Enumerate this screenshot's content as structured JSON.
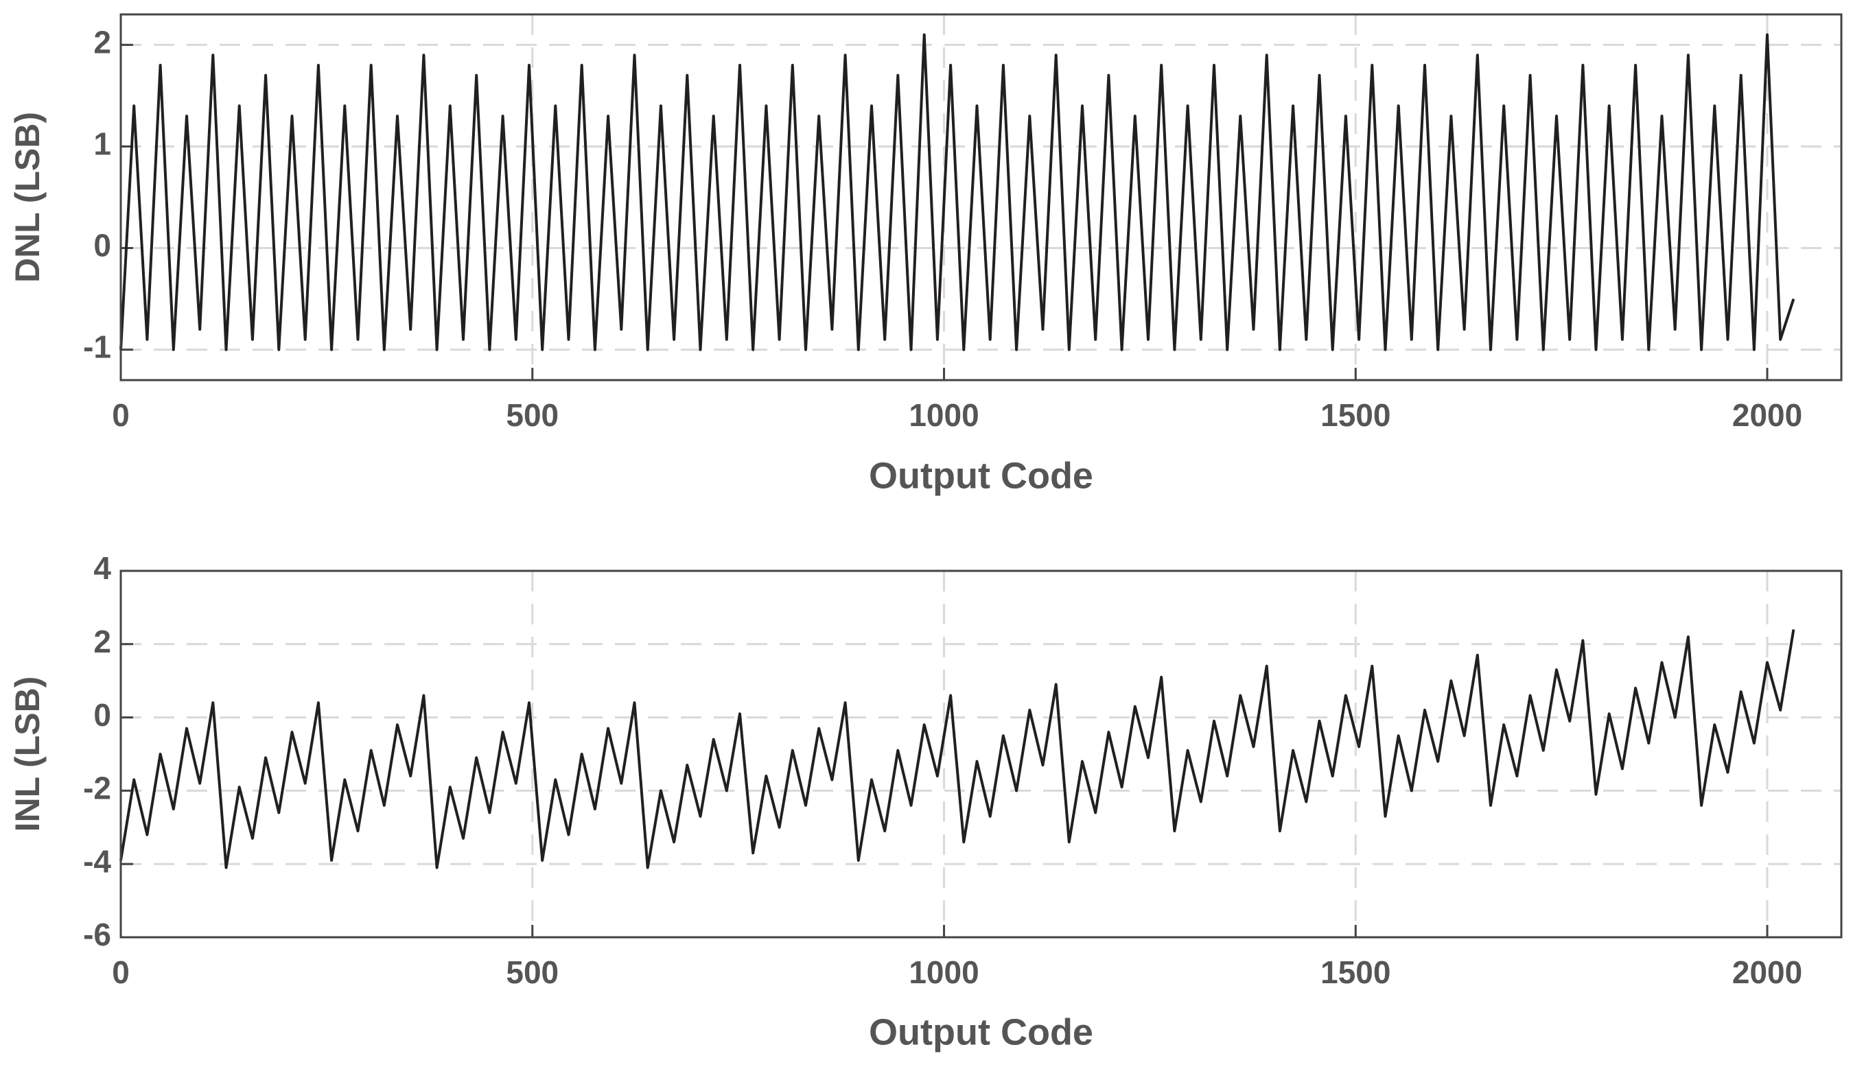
{
  "chart_data": [
    {
      "type": "line",
      "xlabel": "Output Code",
      "ylabel": "DNL (LSB)",
      "color": "#231f20",
      "xlim": [
        0,
        2090
      ],
      "ylim": [
        -1.3,
        2.3
      ],
      "xticks": [
        0,
        500,
        1000,
        1500,
        2000
      ],
      "yticks": [
        -1,
        0,
        1,
        2
      ],
      "grid": true,
      "x": [
        0,
        16,
        32,
        48,
        64,
        80,
        96,
        112,
        128,
        144,
        160,
        176,
        192,
        208,
        224,
        240,
        256,
        272,
        288,
        304,
        320,
        336,
        352,
        368,
        384,
        400,
        416,
        432,
        448,
        464,
        480,
        496,
        512,
        528,
        544,
        560,
        576,
        592,
        608,
        624,
        640,
        656,
        672,
        688,
        704,
        720,
        736,
        752,
        768,
        784,
        800,
        816,
        832,
        848,
        864,
        880,
        896,
        912,
        928,
        944,
        960,
        976,
        992,
        1008,
        1024,
        1040,
        1056,
        1072,
        1088,
        1104,
        1120,
        1136,
        1152,
        1168,
        1184,
        1200,
        1216,
        1232,
        1248,
        1264,
        1280,
        1296,
        1312,
        1328,
        1344,
        1360,
        1376,
        1392,
        1408,
        1424,
        1440,
        1456,
        1472,
        1488,
        1504,
        1520,
        1536,
        1552,
        1568,
        1584,
        1600,
        1616,
        1632,
        1648,
        1664,
        1680,
        1696,
        1712,
        1728,
        1744,
        1760,
        1776,
        1792,
        1808,
        1824,
        1840,
        1856,
        1872,
        1888,
        1904,
        1920,
        1936,
        1952,
        1968,
        1984,
        2000,
        2016,
        2032
      ],
      "values": [
        -1.0,
        1.4,
        -0.9,
        1.8,
        -1.0,
        1.3,
        -0.8,
        1.9,
        -1.0,
        1.4,
        -0.9,
        1.7,
        -1.0,
        1.3,
        -0.9,
        1.8,
        -1.0,
        1.4,
        -0.9,
        1.8,
        -1.0,
        1.3,
        -0.8,
        1.9,
        -1.0,
        1.4,
        -0.9,
        1.7,
        -1.0,
        1.3,
        -0.9,
        1.8,
        -1.0,
        1.4,
        -0.9,
        1.8,
        -1.0,
        1.3,
        -0.8,
        1.9,
        -1.0,
        1.4,
        -0.9,
        1.7,
        -1.0,
        1.3,
        -0.9,
        1.8,
        -1.0,
        1.4,
        -0.9,
        1.8,
        -1.0,
        1.3,
        -0.8,
        1.9,
        -1.0,
        1.4,
        -0.9,
        1.7,
        -1.0,
        2.1,
        -0.9,
        1.8,
        -1.0,
        1.4,
        -0.9,
        1.8,
        -1.0,
        1.3,
        -0.8,
        1.9,
        -1.0,
        1.4,
        -0.9,
        1.7,
        -1.0,
        1.3,
        -0.9,
        1.8,
        -1.0,
        1.4,
        -0.9,
        1.8,
        -1.0,
        1.3,
        -0.8,
        1.9,
        -1.0,
        1.4,
        -0.9,
        1.7,
        -1.0,
        1.3,
        -0.9,
        1.8,
        -1.0,
        1.4,
        -0.9,
        1.8,
        -1.0,
        1.3,
        -0.8,
        1.9,
        -1.0,
        1.4,
        -0.9,
        1.7,
        -1.0,
        1.3,
        -0.9,
        1.8,
        -1.0,
        1.4,
        -0.9,
        1.8,
        -1.0,
        1.3,
        -0.8,
        1.9,
        -1.0,
        1.4,
        -0.9,
        1.7,
        -1.0,
        2.1,
        -0.9,
        -0.5
      ]
    },
    {
      "type": "line",
      "xlabel": "Output Code",
      "ylabel": "INL (LSB)",
      "color": "#231f20",
      "xlim": [
        0,
        2090
      ],
      "ylim": [
        -6,
        4
      ],
      "xticks": [
        0,
        500,
        1000,
        1500,
        2000
      ],
      "yticks": [
        -6,
        -4,
        -2,
        0,
        2,
        4
      ],
      "grid": true,
      "x": [
        0,
        16,
        32,
        48,
        64,
        80,
        96,
        112,
        128,
        144,
        160,
        176,
        192,
        208,
        224,
        240,
        256,
        272,
        288,
        304,
        320,
        336,
        352,
        368,
        384,
        400,
        416,
        432,
        448,
        464,
        480,
        496,
        512,
        528,
        544,
        560,
        576,
        592,
        608,
        624,
        640,
        656,
        672,
        688,
        704,
        720,
        736,
        752,
        768,
        784,
        800,
        816,
        832,
        848,
        864,
        880,
        896,
        912,
        928,
        944,
        960,
        976,
        992,
        1008,
        1024,
        1040,
        1056,
        1072,
        1088,
        1104,
        1120,
        1136,
        1152,
        1168,
        1184,
        1200,
        1216,
        1232,
        1248,
        1264,
        1280,
        1296,
        1312,
        1328,
        1344,
        1360,
        1376,
        1392,
        1408,
        1424,
        1440,
        1456,
        1472,
        1488,
        1504,
        1520,
        1536,
        1552,
        1568,
        1584,
        1600,
        1616,
        1632,
        1648,
        1664,
        1680,
        1696,
        1712,
        1728,
        1744,
        1760,
        1776,
        1792,
        1808,
        1824,
        1840,
        1856,
        1872,
        1888,
        1904,
        1920,
        1936,
        1952,
        1968,
        1984,
        2000,
        2016,
        2032
      ],
      "values": [
        -3.9,
        -1.7,
        -3.2,
        -1.0,
        -2.5,
        -0.3,
        -1.8,
        0.4,
        -4.1,
        -1.9,
        -3.3,
        -1.1,
        -2.6,
        -0.4,
        -1.8,
        0.4,
        -3.9,
        -1.7,
        -3.1,
        -0.9,
        -2.4,
        -0.2,
        -1.6,
        0.6,
        -4.1,
        -1.9,
        -3.3,
        -1.1,
        -2.6,
        -0.4,
        -1.8,
        0.4,
        -3.9,
        -1.7,
        -3.2,
        -1.0,
        -2.5,
        -0.3,
        -1.8,
        0.4,
        -4.1,
        -2.0,
        -3.4,
        -1.3,
        -2.7,
        -0.6,
        -2.0,
        0.1,
        -3.7,
        -1.6,
        -3.0,
        -0.9,
        -2.4,
        -0.3,
        -1.7,
        0.4,
        -3.9,
        -1.7,
        -3.1,
        -0.9,
        -2.4,
        -0.2,
        -1.6,
        0.6,
        -3.4,
        -1.2,
        -2.7,
        -0.5,
        -2.0,
        0.2,
        -1.3,
        0.9,
        -3.4,
        -1.2,
        -2.6,
        -0.4,
        -1.9,
        0.3,
        -1.1,
        1.1,
        -3.1,
        -0.9,
        -2.3,
        -0.1,
        -1.6,
        0.6,
        -0.8,
        1.4,
        -3.1,
        -0.9,
        -2.3,
        -0.1,
        -1.6,
        0.6,
        -0.8,
        1.4,
        -2.7,
        -0.5,
        -2.0,
        0.2,
        -1.2,
        1.0,
        -0.5,
        1.7,
        -2.4,
        -0.2,
        -1.6,
        0.6,
        -0.9,
        1.3,
        -0.1,
        2.1,
        -2.1,
        0.1,
        -1.4,
        0.8,
        -0.7,
        1.5,
        0.0,
        2.2,
        -2.4,
        -0.2,
        -1.5,
        0.7,
        -0.7,
        1.5,
        0.2,
        2.4
      ]
    }
  ]
}
